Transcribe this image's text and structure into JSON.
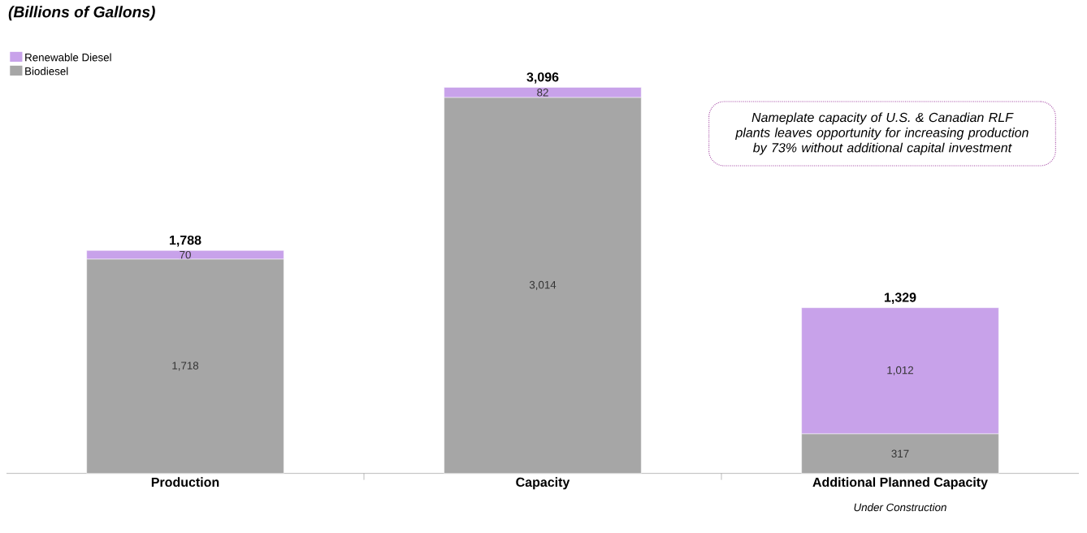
{
  "chart_data": {
    "type": "bar",
    "stacked": true,
    "title": "(Billions of Gallons)",
    "categories": [
      "Production",
      "Capacity",
      "Additional Planned Capacity"
    ],
    "series": [
      {
        "name": "Biodiesel",
        "color": "#a6a6a6",
        "values": [
          1718,
          3014,
          317
        ],
        "value_labels": [
          "1,718",
          "3,014",
          "317"
        ]
      },
      {
        "name": "Renewable Diesel",
        "color": "#c8a2ea",
        "values": [
          70,
          82,
          1012
        ],
        "value_labels": [
          "70",
          "82",
          "1,012"
        ]
      }
    ],
    "totals": [
      "1,788",
      "3,096",
      "1,329"
    ],
    "legend": "top left",
    "annotations": [
      "Nameplate capacity of U.S. & Canadian RLF plants leaves opportunity for increasing production by 73% without additional capital investment",
      "Under Construction"
    ]
  }
}
